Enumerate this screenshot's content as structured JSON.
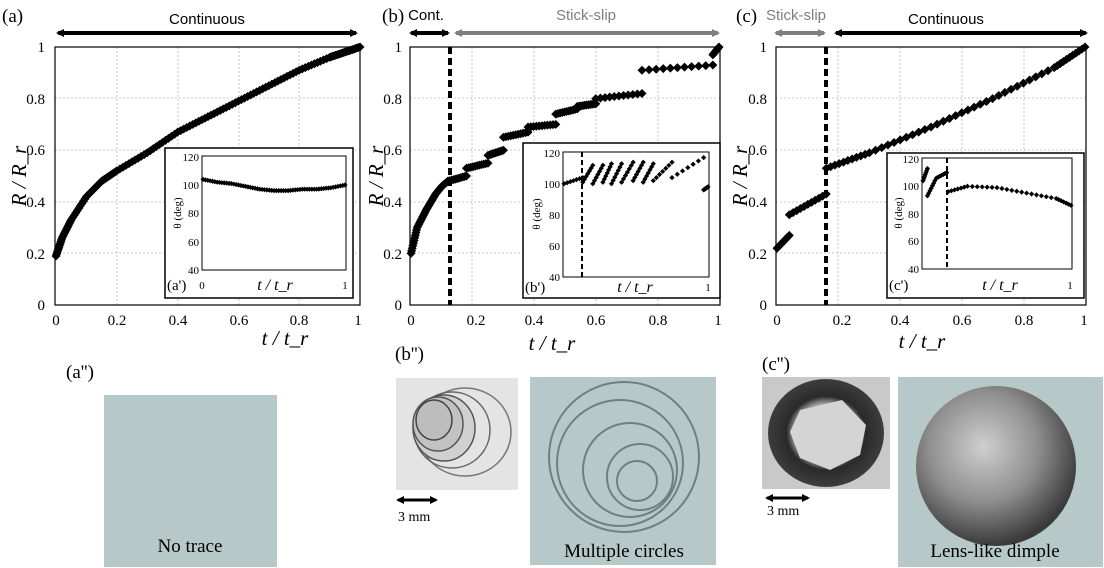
{
  "chart_data": [
    {
      "type": "scatter",
      "panel": "(a)",
      "regime": [
        {
          "label": "Continuous",
          "from": 0,
          "to": 1,
          "color": "#000000"
        }
      ],
      "xlabel": "t / t_r",
      "ylabel": "R / R_r",
      "xlim": [
        0,
        1
      ],
      "ylim": [
        0,
        1
      ],
      "xticks": [
        "0",
        "0.2",
        "0.4",
        "0.6",
        "0.8",
        "1"
      ],
      "yticks": [
        "0",
        "0.2",
        "0.4",
        "0.6",
        "0.8",
        "1"
      ],
      "grid": true,
      "dashed_marker": null,
      "segments": [
        {
          "x": [
            0,
            0.02,
            0.05,
            0.1,
            0.15,
            0.2,
            0.3,
            0.4,
            0.5,
            0.6,
            0.7,
            0.8,
            0.9,
            0.95,
            1.0
          ],
          "y": [
            0.19,
            0.26,
            0.33,
            0.42,
            0.48,
            0.52,
            0.59,
            0.67,
            0.73,
            0.79,
            0.85,
            0.91,
            0.96,
            0.98,
            1.0
          ]
        }
      ],
      "inset": {
        "label": "(a')",
        "xlabel": "t / t_r",
        "ylabel": "θ (deg)",
        "xlim": [
          0,
          1
        ],
        "ylim": [
          40,
          120
        ],
        "xticks": [
          "0",
          "1"
        ],
        "yticks": [
          "40",
          "60",
          "80",
          "100",
          "120"
        ],
        "dashed_marker": null,
        "segments": [
          {
            "x": [
              0,
              0.1,
              0.2,
              0.3,
              0.4,
              0.5,
              0.6,
              0.7,
              0.8,
              0.9,
              1.0
            ],
            "y": [
              104,
              102,
              101,
              99,
              97,
              96,
              96,
              97,
              97,
              98,
              100
            ]
          }
        ]
      }
    },
    {
      "type": "scatter",
      "panel": "(b)",
      "regime": [
        {
          "label": "Cont.",
          "from": 0,
          "to": 0.12,
          "color": "#000000"
        },
        {
          "label": "Stick-slip",
          "from": 0.12,
          "to": 1,
          "color": "#7f7f7f"
        }
      ],
      "xlabel": "t / t_r",
      "ylabel": "R / R_r",
      "xlim": [
        0,
        1
      ],
      "ylim": [
        0,
        1
      ],
      "xticks": [
        "0",
        "0.2",
        "0.4",
        "0.6",
        "0.8",
        "1"
      ],
      "yticks": [
        "0",
        "0.2",
        "0.4",
        "0.6",
        "0.8",
        "1"
      ],
      "grid": true,
      "dashed_marker": 0.13,
      "segments": [
        {
          "x": [
            0,
            0.02,
            0.05,
            0.08,
            0.1,
            0.12
          ],
          "y": [
            0.2,
            0.3,
            0.37,
            0.43,
            0.46,
            0.48
          ]
        },
        {
          "x": [
            0.12,
            0.18
          ],
          "y": [
            0.48,
            0.5
          ]
        },
        {
          "x": [
            0.18,
            0.25
          ],
          "y": [
            0.53,
            0.55
          ]
        },
        {
          "x": [
            0.25,
            0.3
          ],
          "y": [
            0.58,
            0.6
          ]
        },
        {
          "x": [
            0.3,
            0.38
          ],
          "y": [
            0.65,
            0.67
          ]
        },
        {
          "x": [
            0.38,
            0.47
          ],
          "y": [
            0.69,
            0.7
          ]
        },
        {
          "x": [
            0.47,
            0.54
          ],
          "y": [
            0.74,
            0.76
          ]
        },
        {
          "x": [
            0.54,
            0.6
          ],
          "y": [
            0.77,
            0.78
          ]
        },
        {
          "x": [
            0.6,
            0.75
          ],
          "y": [
            0.8,
            0.82
          ]
        },
        {
          "x": [
            0.75,
            0.98
          ],
          "y": [
            0.91,
            0.93
          ]
        },
        {
          "x": [
            0.98,
            1.0
          ],
          "y": [
            0.97,
            1.0
          ]
        }
      ],
      "inset": {
        "label": "(b')",
        "xlabel": "t / t_r",
        "ylabel": "θ (deg)",
        "xlim": [
          0,
          1
        ],
        "ylim": [
          40,
          120
        ],
        "xticks": [
          "0",
          "1"
        ],
        "yticks": [
          "40",
          "60",
          "80",
          "100",
          "120"
        ],
        "dashed_marker": 0.13,
        "segments": [
          {
            "x": [
              0,
              0.13
            ],
            "y": [
              100,
              104
            ]
          },
          {
            "x": [
              0.13,
              0.2
            ],
            "y": [
              101,
              112
            ]
          },
          {
            "x": [
              0.2,
              0.27
            ],
            "y": [
              100,
              112
            ]
          },
          {
            "x": [
              0.27,
              0.33
            ],
            "y": [
              101,
              113
            ]
          },
          {
            "x": [
              0.33,
              0.4
            ],
            "y": [
              100,
              113
            ]
          },
          {
            "x": [
              0.4,
              0.48
            ],
            "y": [
              101,
              114
            ]
          },
          {
            "x": [
              0.48,
              0.55
            ],
            "y": [
              102,
              114
            ]
          },
          {
            "x": [
              0.55,
              0.62
            ],
            "y": [
              101,
              113
            ]
          },
          {
            "x": [
              0.62,
              0.75
            ],
            "y": [
              102,
              114
            ]
          },
          {
            "x": [
              0.75,
              0.97
            ],
            "y": [
              104,
              117
            ]
          },
          {
            "x": [
              0.97,
              1.0
            ],
            "y": [
              96,
              98
            ]
          }
        ]
      }
    },
    {
      "type": "scatter",
      "panel": "(c)",
      "regime": [
        {
          "label": "Stick-slip",
          "from": 0,
          "to": 0.16,
          "color": "#7f7f7f"
        },
        {
          "label": "Continuous",
          "from": 0.18,
          "to": 1,
          "color": "#000000"
        }
      ],
      "xlabel": "t / t_r",
      "ylabel": "R / R_r",
      "xlim": [
        0,
        1
      ],
      "ylim": [
        0,
        1
      ],
      "xticks": [
        "0",
        "0.2",
        "0.4",
        "0.6",
        "0.8",
        "1"
      ],
      "yticks": [
        "0",
        "0.2",
        "0.4",
        "0.6",
        "0.8",
        "1"
      ],
      "grid": true,
      "dashed_marker": 0.16,
      "segments": [
        {
          "x": [
            0,
            0.04
          ],
          "y": [
            0.22,
            0.27
          ]
        },
        {
          "x": [
            0.04,
            0.16
          ],
          "y": [
            0.35,
            0.43
          ]
        },
        {
          "x": [
            0.16,
            0.3,
            0.5,
            0.7,
            0.9,
            1.0
          ],
          "y": [
            0.53,
            0.59,
            0.69,
            0.8,
            0.92,
            1.0
          ]
        }
      ],
      "inset": {
        "label": "(c')",
        "xlabel": "t / t_r",
        "ylabel": "θ (deg)",
        "xlim": [
          0,
          1
        ],
        "ylim": [
          40,
          120
        ],
        "xticks": [
          "0",
          "1"
        ],
        "yticks": [
          "40",
          "60",
          "80",
          "100",
          "120"
        ],
        "dashed_marker": 0.17,
        "segments": [
          {
            "x": [
              0,
              0.03
            ],
            "y": [
              104,
              113
            ]
          },
          {
            "x": [
              0.03,
              0.08
            ],
            "y": [
              93,
              104
            ]
          },
          {
            "x": [
              0.09,
              0.16
            ],
            "y": [
              106,
              110
            ]
          },
          {
            "x": [
              0.17,
              0.3,
              0.5,
              0.7,
              0.9,
              1.0
            ],
            "y": [
              96,
              100,
              99,
              95,
              91,
              86
            ]
          }
        ]
      }
    }
  ],
  "illustrations": {
    "a": {
      "label": "(a'')",
      "caption": "No trace"
    },
    "b": {
      "label": "(b'')",
      "caption": "Multiple circles",
      "scale": "3 mm"
    },
    "c": {
      "label": "(c'')",
      "caption": "Lens-like dimple",
      "scale": "3 mm"
    }
  },
  "colors": {
    "sketch_bg": "#b6c8c8",
    "circle_stroke": "#6f7f82",
    "stick_slip": "#7f7f7f",
    "continuous": "#000000"
  }
}
